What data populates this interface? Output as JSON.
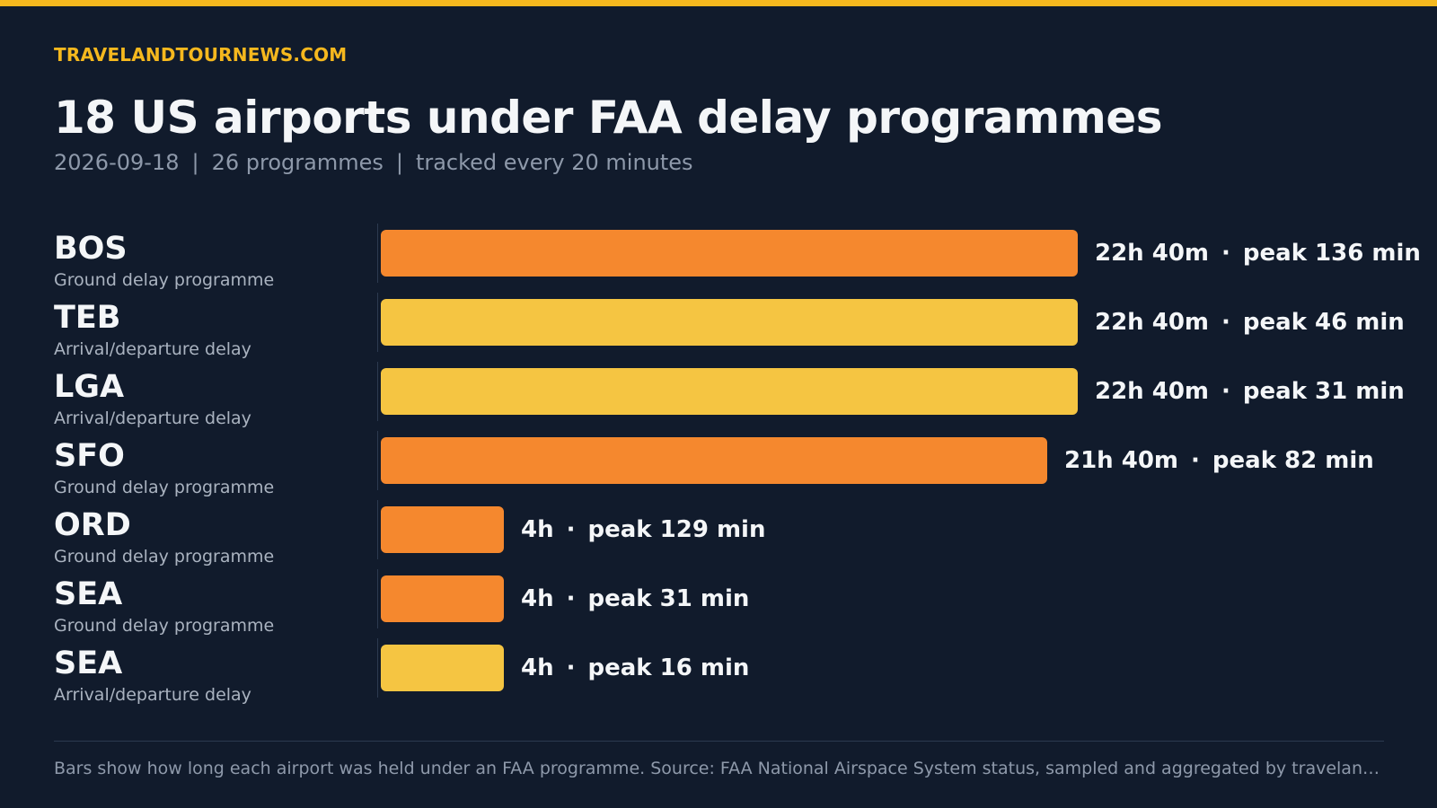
{
  "brand": "TRAVELANDTOURNEWS.COM",
  "title": "18 US airports under FAA delay programmes",
  "subtitle": {
    "date": "2026-09-18",
    "programmes": "26 programmes",
    "cadence": "tracked every 20 minutes",
    "separator": "|"
  },
  "colors": {
    "accent": "#f5b81e",
    "ground_delay": "#f5882e",
    "arrival_departure": "#f5c542",
    "background": "#111b2c"
  },
  "chart_data": {
    "type": "bar",
    "orientation": "horizontal",
    "unit": "hours",
    "xlim": [
      0,
      22.667
    ],
    "label_separator": "·",
    "rows": [
      {
        "code": "BOS",
        "type": "Ground delay programme",
        "category": "ground_delay",
        "duration_hours": 22.667,
        "duration_label": "22h 40m",
        "peak_label": "peak 136 min",
        "peak_min": 136
      },
      {
        "code": "TEB",
        "type": "Arrival/departure delay",
        "category": "arrival_departure",
        "duration_hours": 22.667,
        "duration_label": "22h 40m",
        "peak_label": "peak 46 min",
        "peak_min": 46
      },
      {
        "code": "LGA",
        "type": "Arrival/departure delay",
        "category": "arrival_departure",
        "duration_hours": 22.667,
        "duration_label": "22h 40m",
        "peak_label": "peak 31 min",
        "peak_min": 31
      },
      {
        "code": "SFO",
        "type": "Ground delay programme",
        "category": "ground_delay",
        "duration_hours": 21.667,
        "duration_label": "21h 40m",
        "peak_label": "peak 82 min",
        "peak_min": 82
      },
      {
        "code": "ORD",
        "type": "Ground delay programme",
        "category": "ground_delay",
        "duration_hours": 4,
        "duration_label": "4h",
        "peak_label": "peak 129 min",
        "peak_min": 129
      },
      {
        "code": "SEA",
        "type": "Ground delay programme",
        "category": "ground_delay",
        "duration_hours": 4,
        "duration_label": "4h",
        "peak_label": "peak 31 min",
        "peak_min": 31
      },
      {
        "code": "SEA",
        "type": "Arrival/departure delay",
        "category": "arrival_departure",
        "duration_hours": 4,
        "duration_label": "4h",
        "peak_label": "peak 16 min",
        "peak_min": 16
      }
    ]
  },
  "footnote": "Bars show how long each airport was held under an FAA programme. Source: FAA National Airspace System status, sampled and aggregated by travelandtournews.com."
}
